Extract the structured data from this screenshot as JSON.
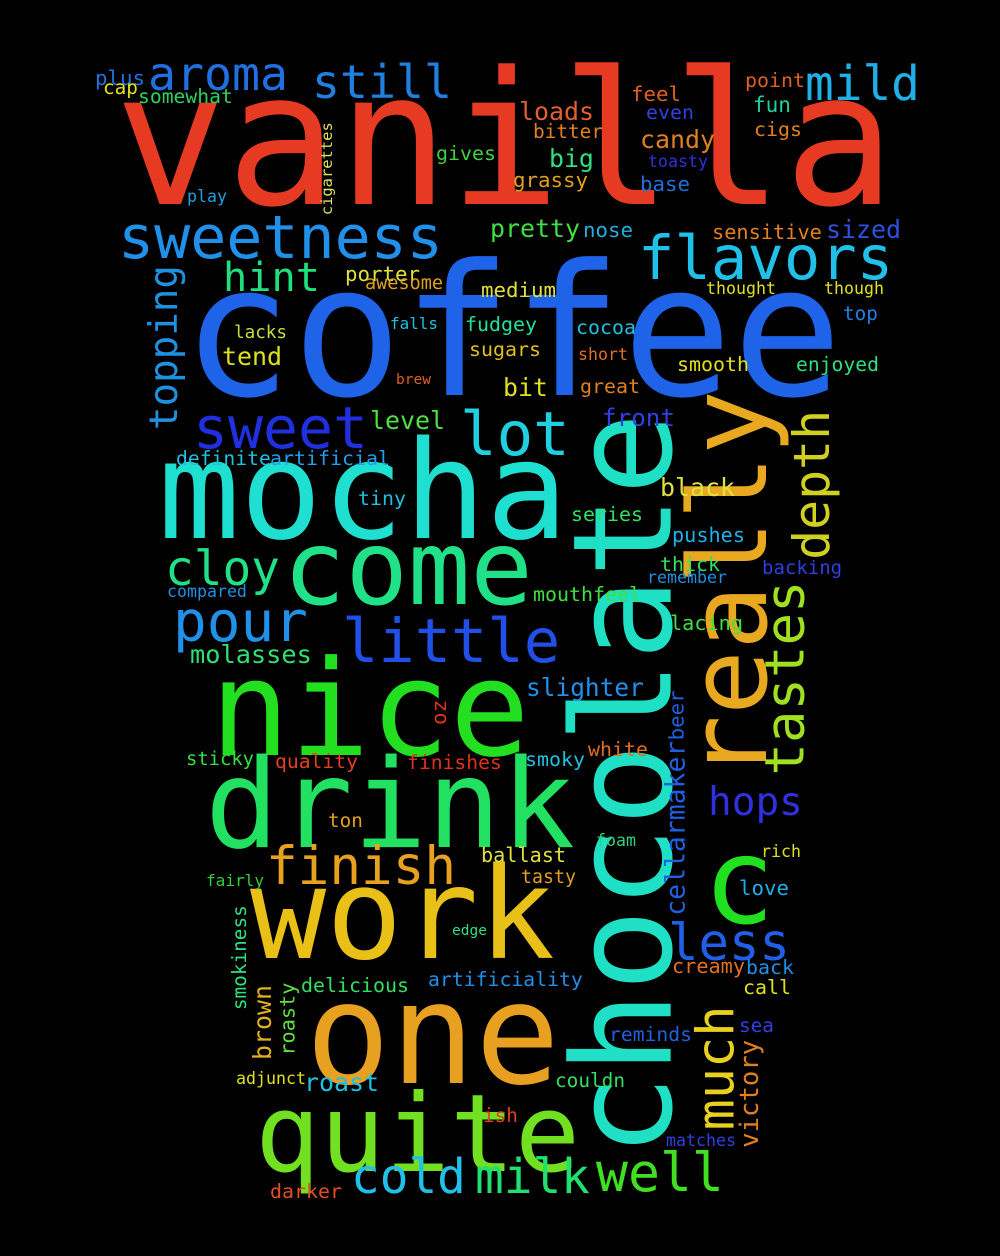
{
  "words": [
    {
      "text": "vanilla",
      "color": "#e63a22"
    },
    {
      "text": "coffee",
      "color": "#1e63e8"
    },
    {
      "text": "chocolate",
      "color": "#1fe0c4"
    },
    {
      "text": "mocha",
      "color": "#1fe0d0"
    },
    {
      "text": "really",
      "color": "#e8a820"
    },
    {
      "text": "nice",
      "color": "#22e020"
    },
    {
      "text": "drink",
      "color": "#22e060"
    },
    {
      "text": "work",
      "color": "#e8c018"
    },
    {
      "text": "one",
      "color": "#e8a020"
    },
    {
      "text": "quite",
      "color": "#70e020"
    },
    {
      "text": "come",
      "color": "#20e088"
    },
    {
      "text": "sweetness",
      "color": "#2090e8"
    },
    {
      "text": "flavors",
      "color": "#20c0e8"
    },
    {
      "text": "sweet",
      "color": "#2030e0"
    },
    {
      "text": "lot",
      "color": "#20d0e0"
    },
    {
      "text": "little",
      "color": "#2050e8"
    },
    {
      "text": "pour",
      "color": "#2090e8"
    },
    {
      "text": "cloy",
      "color": "#20e088"
    },
    {
      "text": "aroma",
      "color": "#2070e0"
    },
    {
      "text": "still",
      "color": "#2080e0"
    },
    {
      "text": "mild",
      "color": "#20b0e8"
    },
    {
      "text": "hint",
      "color": "#20e080"
    },
    {
      "text": "tastes",
      "color": "#a0e020"
    },
    {
      "text": "depth",
      "color": "#d0d020"
    },
    {
      "text": "much",
      "color": "#e8d020"
    },
    {
      "text": "finish",
      "color": "#e8a020"
    },
    {
      "text": "hops",
      "color": "#3030e0"
    },
    {
      "text": "less",
      "color": "#2060e8"
    },
    {
      "text": "c",
      "color": "#20e020"
    },
    {
      "text": "milk",
      "color": "#20e070"
    },
    {
      "text": "cold",
      "color": "#20c0e8"
    },
    {
      "text": "well",
      "color": "#40e020"
    },
    {
      "text": "topping",
      "color": "#2090e0"
    },
    {
      "text": "plus",
      "color": "#2070e0"
    },
    {
      "text": "cap",
      "color": "#e0e020"
    },
    {
      "text": "somewhat",
      "color": "#30d060"
    },
    {
      "text": "cigarettes",
      "color": "#e0e060"
    },
    {
      "text": "play",
      "color": "#20a0e0"
    },
    {
      "text": "loads",
      "color": "#e06030"
    },
    {
      "text": "bitter",
      "color": "#e08020"
    },
    {
      "text": "gives",
      "color": "#40d040"
    },
    {
      "text": "grassy",
      "color": "#e0a020"
    },
    {
      "text": "big",
      "color": "#30e080"
    },
    {
      "text": "feel",
      "color": "#e06020"
    },
    {
      "text": "even",
      "color": "#3040e0"
    },
    {
      "text": "candy",
      "color": "#e08020"
    },
    {
      "text": "toasty",
      "color": "#3030d8"
    },
    {
      "text": "base",
      "color": "#2070d8"
    },
    {
      "text": "point",
      "color": "#e06020"
    },
    {
      "text": "fun",
      "color": "#20d0a0"
    },
    {
      "text": "cigs",
      "color": "#e08020"
    },
    {
      "text": "pretty",
      "color": "#40e040"
    },
    {
      "text": "nose",
      "color": "#20b0e0"
    },
    {
      "text": "sensitive",
      "color": "#e08020"
    },
    {
      "text": "sized",
      "color": "#3050e0"
    },
    {
      "text": "porter",
      "color": "#e0e040"
    },
    {
      "text": "awesome",
      "color": "#e0a020"
    },
    {
      "text": "medium",
      "color": "#e0e040"
    },
    {
      "text": "thought",
      "color": "#e0e020"
    },
    {
      "text": "though",
      "color": "#e0e020"
    },
    {
      "text": "lacks",
      "color": "#c0e040"
    },
    {
      "text": "falls",
      "color": "#20c0e0"
    },
    {
      "text": "fudgey",
      "color": "#20e0a0"
    },
    {
      "text": "cocoa",
      "color": "#20c0e0"
    },
    {
      "text": "top",
      "color": "#2080e0"
    },
    {
      "text": "tend",
      "color": "#e0e020"
    },
    {
      "text": "sugars",
      "color": "#e0c020"
    },
    {
      "text": "short",
      "color": "#e07020"
    },
    {
      "text": "smooth",
      "color": "#e0e020"
    },
    {
      "text": "enjoyed",
      "color": "#30e080"
    },
    {
      "text": "brew",
      "color": "#e06020"
    },
    {
      "text": "bit",
      "color": "#e0e020"
    },
    {
      "text": "great",
      "color": "#e08020"
    },
    {
      "text": "level",
      "color": "#50e040"
    },
    {
      "text": "front",
      "color": "#3040e0"
    },
    {
      "text": "definite",
      "color": "#20c0e0"
    },
    {
      "text": "artificial",
      "color": "#20a0e8"
    },
    {
      "text": "black",
      "color": "#e0e040"
    },
    {
      "text": "tiny",
      "color": "#20c0e0"
    },
    {
      "text": "series",
      "color": "#30e060"
    },
    {
      "text": "pushes",
      "color": "#20b0e8"
    },
    {
      "text": "thick",
      "color": "#30e060"
    },
    {
      "text": "remember",
      "color": "#2090e0"
    },
    {
      "text": "backing",
      "color": "#3040e0"
    },
    {
      "text": "compared",
      "color": "#2090e0"
    },
    {
      "text": "mouthfeel",
      "color": "#40e040"
    },
    {
      "text": "lacing",
      "color": "#40e040"
    },
    {
      "text": "molasses",
      "color": "#30e070"
    },
    {
      "text": "slighter",
      "color": "#2090e8"
    },
    {
      "text": "oz",
      "color": "#e03020"
    },
    {
      "text": "beer",
      "color": "#2060e0"
    },
    {
      "text": "cellarmaker",
      "color": "#2060e0"
    },
    {
      "text": "sticky",
      "color": "#30e040"
    },
    {
      "text": "quality",
      "color": "#e04020"
    },
    {
      "text": "finishes",
      "color": "#e03020"
    },
    {
      "text": "smoky",
      "color": "#20c0e0"
    },
    {
      "text": "white",
      "color": "#e07020"
    },
    {
      "text": "ton",
      "color": "#e0a020"
    },
    {
      "text": "foam",
      "color": "#30d080"
    },
    {
      "text": "rich",
      "color": "#e0e020"
    },
    {
      "text": "ballast",
      "color": "#e0e040"
    },
    {
      "text": "fairly",
      "color": "#30d040"
    },
    {
      "text": "tasty",
      "color": "#e0a020"
    },
    {
      "text": "love",
      "color": "#20b0e8"
    },
    {
      "text": "smokiness",
      "color": "#30e080"
    },
    {
      "text": "edge",
      "color": "#30e080"
    },
    {
      "text": "artificiality",
      "color": "#2090e8"
    },
    {
      "text": "creamy",
      "color": "#e07020"
    },
    {
      "text": "back",
      "color": "#2090e8"
    },
    {
      "text": "delicious",
      "color": "#30e060"
    },
    {
      "text": "call",
      "color": "#e0e020"
    },
    {
      "text": "brown",
      "color": "#e0b020"
    },
    {
      "text": "roasty",
      "color": "#60e040"
    },
    {
      "text": "sea",
      "color": "#3040e0"
    },
    {
      "text": "reminds",
      "color": "#2060e0"
    },
    {
      "text": "victory",
      "color": "#e08020"
    },
    {
      "text": "adjunct",
      "color": "#e0e020"
    },
    {
      "text": "roast",
      "color": "#20c0e0"
    },
    {
      "text": "couldn",
      "color": "#30e060"
    },
    {
      "text": "ish",
      "color": "#e04020"
    },
    {
      "text": "matches",
      "color": "#3040e0"
    },
    {
      "text": "darker",
      "color": "#e05020"
    }
  ]
}
